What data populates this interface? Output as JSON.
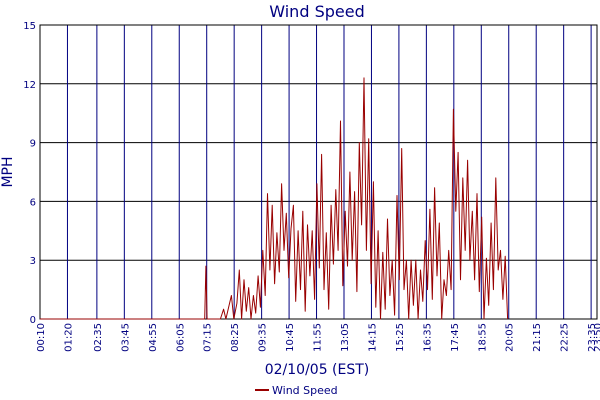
{
  "chart_data": {
    "type": "line",
    "title": "Wind Speed",
    "xlabel": "02/10/05 (EST)",
    "ylabel": "MPH",
    "ylim": [
      0,
      15
    ],
    "yticks": [
      "0",
      "3",
      "6",
      "9",
      "12",
      "15"
    ],
    "xticks": [
      "00:10",
      "01:20",
      "02:35",
      "03:45",
      "04:55",
      "06:05",
      "07:15",
      "08:25",
      "09:35",
      "10:45",
      "11:55",
      "13:05",
      "14:15",
      "15:25",
      "16:35",
      "17:45",
      "18:55",
      "20:05",
      "21:15",
      "22:25",
      "23:35",
      "23:50"
    ],
    "x_range_minutes": [
      10,
      1430
    ],
    "grid": true,
    "legend_position": "bottom-center",
    "series": [
      {
        "name": "Wind Speed",
        "color": "#990000",
        "points": [
          [
            10,
            0
          ],
          [
            400,
            0
          ],
          [
            430,
            0
          ],
          [
            433,
            2.7
          ],
          [
            436,
            0
          ],
          [
            470,
            0
          ],
          [
            478,
            0.5
          ],
          [
            484,
            0
          ],
          [
            492,
            0.7
          ],
          [
            498,
            1.2
          ],
          [
            504,
            0
          ],
          [
            512,
            0.8
          ],
          [
            518,
            2.5
          ],
          [
            524,
            0
          ],
          [
            530,
            2
          ],
          [
            536,
            0.4
          ],
          [
            542,
            1.6
          ],
          [
            548,
            0
          ],
          [
            554,
            1.2
          ],
          [
            560,
            0.3
          ],
          [
            566,
            2.2
          ],
          [
            572,
            0.6
          ],
          [
            578,
            3.5
          ],
          [
            584,
            1.2
          ],
          [
            590,
            6.4
          ],
          [
            596,
            2.5
          ],
          [
            602,
            5.8
          ],
          [
            608,
            1.8
          ],
          [
            614,
            4.4
          ],
          [
            620,
            2.4
          ],
          [
            626,
            6.9
          ],
          [
            632,
            3.5
          ],
          [
            638,
            5.4
          ],
          [
            644,
            2.1
          ],
          [
            650,
            4.6
          ],
          [
            656,
            5.8
          ],
          [
            662,
            0.9
          ],
          [
            668,
            4.5
          ],
          [
            674,
            1.5
          ],
          [
            680,
            5.5
          ],
          [
            686,
            0.4
          ],
          [
            692,
            4.8
          ],
          [
            698,
            2.2
          ],
          [
            704,
            4.5
          ],
          [
            710,
            1
          ],
          [
            716,
            6.9
          ],
          [
            722,
            2.6
          ],
          [
            728,
            8.4
          ],
          [
            734,
            1.5
          ],
          [
            740,
            4.4
          ],
          [
            746,
            0.5
          ],
          [
            752,
            5.8
          ],
          [
            758,
            2.8
          ],
          [
            764,
            6.6
          ],
          [
            770,
            3.5
          ],
          [
            776,
            10.1
          ],
          [
            782,
            1.7
          ],
          [
            788,
            5.5
          ],
          [
            794,
            2.7
          ],
          [
            800,
            7.5
          ],
          [
            806,
            3
          ],
          [
            812,
            6.5
          ],
          [
            818,
            1.4
          ],
          [
            824,
            9
          ],
          [
            830,
            4.8
          ],
          [
            836,
            12.3
          ],
          [
            842,
            3.5
          ],
          [
            848,
            9.2
          ],
          [
            854,
            1.8
          ],
          [
            860,
            7
          ],
          [
            866,
            0.6
          ],
          [
            872,
            4.5
          ],
          [
            878,
            0
          ],
          [
            884,
            3.4
          ],
          [
            890,
            0.5
          ],
          [
            896,
            5.1
          ],
          [
            902,
            1.2
          ],
          [
            908,
            3
          ],
          [
            914,
            0.2
          ],
          [
            920,
            6.3
          ],
          [
            926,
            2
          ],
          [
            932,
            8.7
          ],
          [
            938,
            1.5
          ],
          [
            944,
            3
          ],
          [
            950,
            0
          ],
          [
            956,
            3
          ],
          [
            962,
            0.7
          ],
          [
            968,
            3
          ],
          [
            974,
            0
          ],
          [
            980,
            2.5
          ],
          [
            986,
            0.9
          ],
          [
            992,
            4
          ],
          [
            998,
            1.5
          ],
          [
            1004,
            5.6
          ],
          [
            1010,
            1
          ],
          [
            1016,
            6.7
          ],
          [
            1022,
            2.2
          ],
          [
            1028,
            4.9
          ],
          [
            1034,
            0
          ],
          [
            1040,
            2
          ],
          [
            1046,
            1.2
          ],
          [
            1052,
            3.5
          ],
          [
            1058,
            1.5
          ],
          [
            1064,
            10.7
          ],
          [
            1070,
            5.5
          ],
          [
            1076,
            8.5
          ],
          [
            1082,
            2
          ],
          [
            1088,
            7.2
          ],
          [
            1094,
            3.5
          ],
          [
            1100,
            8.1
          ],
          [
            1106,
            3
          ],
          [
            1112,
            5.5
          ],
          [
            1118,
            2
          ],
          [
            1124,
            6.4
          ],
          [
            1130,
            1.4
          ],
          [
            1136,
            5.2
          ],
          [
            1142,
            0
          ],
          [
            1148,
            3.1
          ],
          [
            1154,
            0.7
          ],
          [
            1160,
            4.9
          ],
          [
            1166,
            1.5
          ],
          [
            1172,
            7.2
          ],
          [
            1178,
            2.5
          ],
          [
            1184,
            3.5
          ],
          [
            1190,
            1
          ],
          [
            1196,
            3.2
          ],
          [
            1202,
            0
          ]
        ]
      }
    ]
  }
}
